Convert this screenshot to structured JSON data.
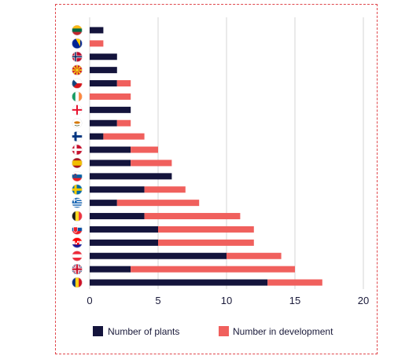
{
  "chart_data": {
    "type": "bar",
    "orientation": "horizontal",
    "stacked": true,
    "categories": [
      "Lithuania",
      "Bosnia and Herzegovina",
      "Norway",
      "North Macedonia",
      "Czech Republic",
      "Ireland",
      "Georgia",
      "Cyprus",
      "Finland",
      "Denmark",
      "Spain",
      "Slovenia",
      "Sweden",
      "Greece",
      "Belgium",
      "Slovakia",
      "Croatia",
      "Austria",
      "United Kingdom",
      "Romania"
    ],
    "series": [
      {
        "name": "Number of plants",
        "color": "#14143c",
        "values": [
          1,
          0,
          2,
          2,
          2,
          0,
          3,
          2,
          1,
          3,
          3,
          6,
          4,
          2,
          4,
          5,
          5,
          10,
          3,
          13
        ]
      },
      {
        "name": "Number in development",
        "color": "#f0605d",
        "values": [
          0,
          1,
          0,
          0,
          1,
          3,
          0,
          1,
          3,
          2,
          3,
          0,
          3,
          6,
          7,
          7,
          7,
          4,
          12,
          4
        ]
      }
    ],
    "xlim": [
      0,
      20
    ],
    "xticks": [
      "0",
      "5",
      "10",
      "15",
      "20"
    ],
    "grid": true,
    "legend_position": "bottom",
    "title": "",
    "xlabel": "",
    "ylabel": ""
  },
  "flag_icons": [
    "lithuania-flag-icon",
    "bosnia-flag-icon",
    "norway-flag-icon",
    "north-macedonia-flag-icon",
    "czech-flag-icon",
    "ireland-flag-icon",
    "georgia-flag-icon",
    "cyprus-flag-icon",
    "finland-flag-icon",
    "denmark-flag-icon",
    "spain-flag-icon",
    "slovenia-flag-icon",
    "sweden-flag-icon",
    "greece-flag-icon",
    "belgium-flag-icon",
    "slovakia-flag-icon",
    "croatia-flag-icon",
    "austria-flag-icon",
    "united-kingdom-flag-icon",
    "romania-flag-icon"
  ],
  "colors": {
    "frame_border": "#e0474c",
    "grid": "#d4d4d4",
    "axis_text": "#1a1a3a"
  }
}
